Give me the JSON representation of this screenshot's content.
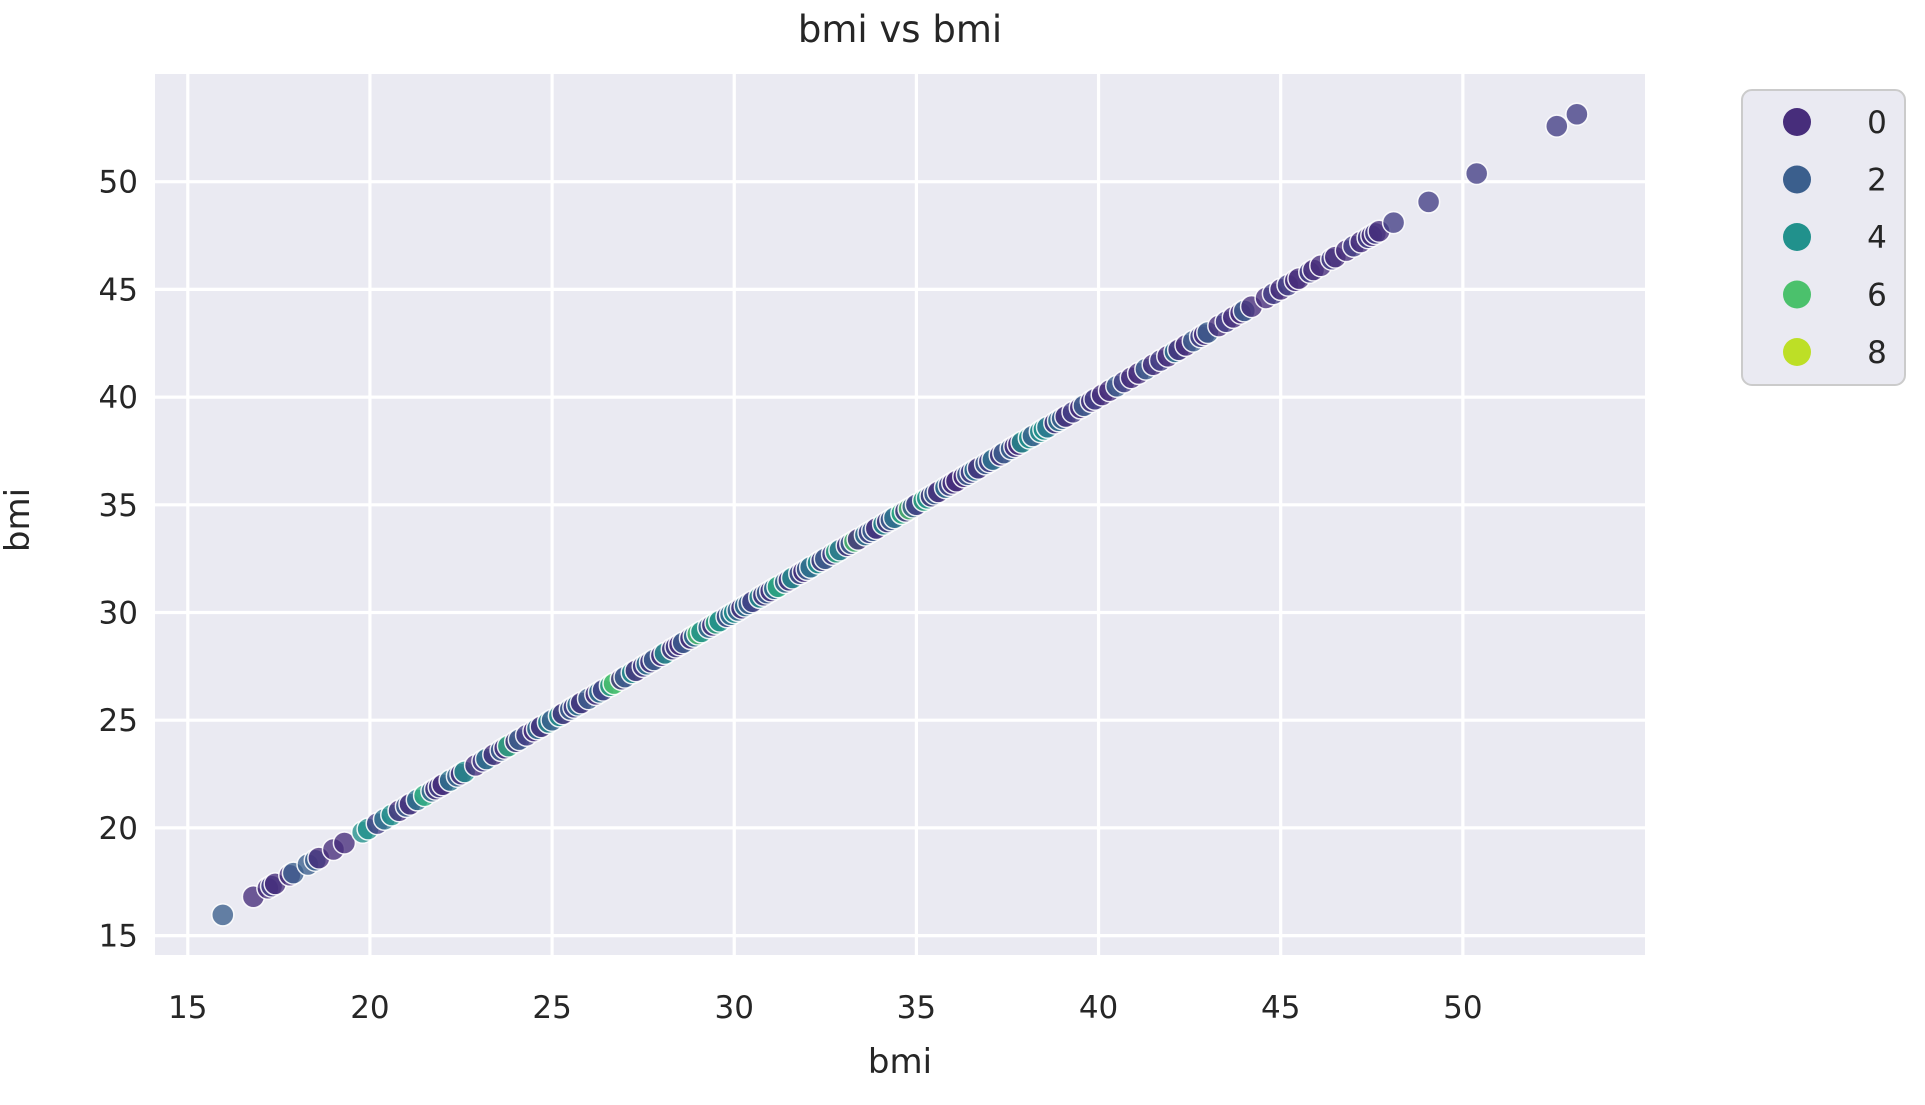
{
  "chart_data": {
    "type": "scatter",
    "title": "bmi vs bmi",
    "xlabel": "bmi",
    "ylabel": "bmi",
    "xlim": [
      14.1,
      55.0
    ],
    "ylim": [
      14.1,
      55.0
    ],
    "xticks": [
      15,
      20,
      25,
      30,
      35,
      40,
      45,
      50
    ],
    "yticks": [
      15,
      20,
      25,
      30,
      35,
      40,
      45,
      50
    ],
    "grid": true,
    "plot_bg_color": "#eaeaf2",
    "grid_color": "#ffffff",
    "text_color": "#262626",
    "relationship": "identity line, every point has y equal to x",
    "marker": {
      "radius_px": 11,
      "alpha": 0.78,
      "edge_color": "#ffffff"
    },
    "hue_palette": {
      "0": "#472d7b",
      "1": "#433e85",
      "2": "#3b5f8d",
      "3": "#2c768e",
      "4": "#21918c",
      "5": "#2ab07f",
      "6": "#4bc16c",
      "7": "#85d54a",
      "8": "#bddf26"
    },
    "legend": {
      "position": "outside-right",
      "bg_color": "#eaeaf2",
      "border_color": "#cbcbcb",
      "entries": [
        {
          "label": "0",
          "color": "#472d7b"
        },
        {
          "label": "2",
          "color": "#3b5f8d"
        },
        {
          "label": "4",
          "color": "#21918c"
        },
        {
          "label": "6",
          "color": "#4bc16c"
        },
        {
          "label": "8",
          "color": "#bddf26"
        }
      ]
    },
    "point_format": [
      "bmi",
      "hue"
    ],
    "points": [
      [
        15.96,
        2
      ],
      [
        16.8,
        0
      ],
      [
        17.2,
        0
      ],
      [
        17.3,
        1
      ],
      [
        17.4,
        0
      ],
      [
        17.8,
        0
      ],
      [
        17.9,
        2
      ],
      [
        18.3,
        2
      ],
      [
        18.5,
        2
      ],
      [
        18.6,
        0
      ],
      [
        19.0,
        0
      ],
      [
        19.3,
        0
      ],
      [
        19.8,
        4
      ],
      [
        19.95,
        4
      ],
      [
        20.2,
        1
      ],
      [
        20.4,
        3
      ],
      [
        20.6,
        4
      ],
      [
        20.8,
        0
      ],
      [
        21.0,
        2
      ],
      [
        21.1,
        0
      ],
      [
        21.3,
        3
      ],
      [
        21.5,
        5
      ],
      [
        21.7,
        2
      ],
      [
        21.8,
        0
      ],
      [
        21.9,
        1
      ],
      [
        22.0,
        0
      ],
      [
        22.2,
        3
      ],
      [
        22.4,
        2
      ],
      [
        22.5,
        0
      ],
      [
        22.6,
        4
      ],
      [
        22.9,
        0
      ],
      [
        23.1,
        1
      ],
      [
        23.2,
        3
      ],
      [
        23.4,
        0
      ],
      [
        23.6,
        2
      ],
      [
        23.7,
        0
      ],
      [
        23.8,
        5
      ],
      [
        24.0,
        0
      ],
      [
        24.1,
        2
      ],
      [
        24.3,
        1
      ],
      [
        24.5,
        0
      ],
      [
        24.6,
        3
      ],
      [
        24.7,
        0
      ],
      [
        24.9,
        4
      ],
      [
        25.0,
        2
      ],
      [
        25.2,
        4
      ],
      [
        25.3,
        0
      ],
      [
        25.5,
        2
      ],
      [
        25.6,
        1
      ],
      [
        25.7,
        3
      ],
      [
        25.8,
        0
      ],
      [
        26.0,
        2
      ],
      [
        26.2,
        0
      ],
      [
        26.3,
        3
      ],
      [
        26.4,
        1
      ],
      [
        26.6,
        5
      ],
      [
        26.7,
        6
      ],
      [
        26.9,
        0
      ],
      [
        27.0,
        2
      ],
      [
        27.2,
        4
      ],
      [
        27.3,
        0
      ],
      [
        27.5,
        1
      ],
      [
        27.6,
        3
      ],
      [
        27.7,
        0
      ],
      [
        27.8,
        2
      ],
      [
        28.0,
        0
      ],
      [
        28.1,
        4
      ],
      [
        28.3,
        0
      ],
      [
        28.4,
        1
      ],
      [
        28.5,
        0
      ],
      [
        28.6,
        2
      ],
      [
        28.8,
        0
      ],
      [
        28.9,
        3
      ],
      [
        29.0,
        6
      ],
      [
        29.1,
        4
      ],
      [
        29.3,
        2
      ],
      [
        29.4,
        0
      ],
      [
        29.5,
        5
      ],
      [
        29.6,
        4
      ],
      [
        29.8,
        1
      ],
      [
        29.9,
        3
      ],
      [
        30.0,
        4
      ],
      [
        30.1,
        2
      ],
      [
        30.2,
        0
      ],
      [
        30.3,
        3
      ],
      [
        30.4,
        2
      ],
      [
        30.5,
        1
      ],
      [
        30.7,
        4
      ],
      [
        30.8,
        0
      ],
      [
        30.9,
        2
      ],
      [
        31.0,
        0
      ],
      [
        31.1,
        3
      ],
      [
        31.2,
        5
      ],
      [
        31.4,
        2
      ],
      [
        31.5,
        0
      ],
      [
        31.6,
        4
      ],
      [
        31.8,
        1
      ],
      [
        31.9,
        0
      ],
      [
        32.0,
        2
      ],
      [
        32.1,
        3
      ],
      [
        32.3,
        4
      ],
      [
        32.4,
        0
      ],
      [
        32.5,
        2
      ],
      [
        32.7,
        1
      ],
      [
        32.8,
        5
      ],
      [
        32.9,
        3
      ],
      [
        33.1,
        0
      ],
      [
        33.2,
        2
      ],
      [
        33.3,
        6
      ],
      [
        33.4,
        0
      ],
      [
        33.6,
        3
      ],
      [
        33.7,
        1
      ],
      [
        33.8,
        2
      ],
      [
        33.9,
        0
      ],
      [
        34.1,
        4
      ],
      [
        34.2,
        0
      ],
      [
        34.3,
        2
      ],
      [
        34.4,
        3
      ],
      [
        34.6,
        5
      ],
      [
        34.7,
        0
      ],
      [
        34.8,
        6
      ],
      [
        34.9,
        2
      ],
      [
        35.0,
        1
      ],
      [
        35.2,
        5
      ],
      [
        35.3,
        4
      ],
      [
        35.4,
        0
      ],
      [
        35.5,
        2
      ],
      [
        35.6,
        0
      ],
      [
        35.8,
        3
      ],
      [
        35.9,
        1
      ],
      [
        36.0,
        0
      ],
      [
        36.1,
        0
      ],
      [
        36.3,
        0
      ],
      [
        36.4,
        2
      ],
      [
        36.5,
        1
      ],
      [
        36.6,
        3
      ],
      [
        36.7,
        0
      ],
      [
        36.9,
        2
      ],
      [
        37.0,
        1
      ],
      [
        37.1,
        3
      ],
      [
        37.3,
        0
      ],
      [
        37.4,
        2
      ],
      [
        37.6,
        2
      ],
      [
        37.7,
        0
      ],
      [
        37.8,
        0
      ],
      [
        37.9,
        4
      ],
      [
        38.1,
        4
      ],
      [
        38.2,
        2
      ],
      [
        38.4,
        4
      ],
      [
        38.5,
        4
      ],
      [
        38.6,
        3
      ],
      [
        38.8,
        0
      ],
      [
        38.9,
        3
      ],
      [
        39.0,
        2
      ],
      [
        39.1,
        0
      ],
      [
        39.3,
        1
      ],
      [
        39.5,
        0
      ],
      [
        39.6,
        2
      ],
      [
        39.8,
        0
      ],
      [
        39.9,
        1
      ],
      [
        40.1,
        0
      ],
      [
        40.3,
        0
      ],
      [
        40.5,
        2
      ],
      [
        40.7,
        1
      ],
      [
        40.9,
        0
      ],
      [
        41.1,
        0
      ],
      [
        41.3,
        2
      ],
      [
        41.5,
        0
      ],
      [
        41.7,
        1
      ],
      [
        41.9,
        0
      ],
      [
        42.1,
        3
      ],
      [
        42.2,
        0
      ],
      [
        42.4,
        0
      ],
      [
        42.6,
        2
      ],
      [
        42.8,
        1
      ],
      [
        42.9,
        0
      ],
      [
        43.0,
        2
      ],
      [
        43.3,
        0
      ],
      [
        43.5,
        1
      ],
      [
        43.7,
        0
      ],
      [
        43.9,
        0
      ],
      [
        44.0,
        2
      ],
      [
        44.2,
        0
      ],
      [
        44.6,
        0
      ],
      [
        44.8,
        1
      ],
      [
        45.0,
        0
      ],
      [
        45.2,
        1
      ],
      [
        45.4,
        0
      ],
      [
        45.5,
        0
      ],
      [
        45.8,
        1
      ],
      [
        45.9,
        0
      ],
      [
        46.1,
        0
      ],
      [
        46.4,
        1
      ],
      [
        46.5,
        0
      ],
      [
        46.8,
        0
      ],
      [
        47.0,
        1
      ],
      [
        47.2,
        0
      ],
      [
        47.4,
        1
      ],
      [
        47.5,
        0
      ],
      [
        47.6,
        1
      ],
      [
        47.7,
        0
      ],
      [
        48.1,
        1
      ],
      [
        49.06,
        1
      ],
      [
        50.38,
        1
      ],
      [
        52.58,
        1
      ],
      [
        53.13,
        1
      ]
    ]
  }
}
